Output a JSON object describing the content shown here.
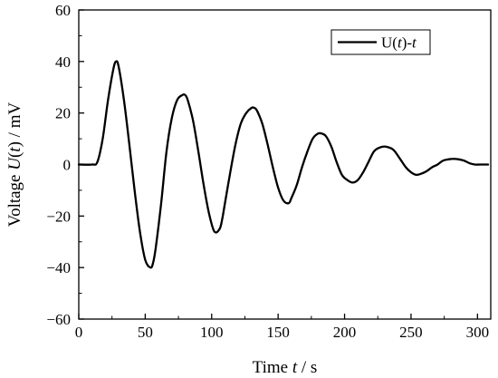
{
  "chart_data": {
    "type": "line",
    "title": "",
    "xlabel": "Time t / s",
    "xlabel_parts": {
      "pre": "Time ",
      "var": "t",
      "post": " / s"
    },
    "ylabel": "Voltage U(t) / mV",
    "ylabel_parts": {
      "pre": "Voltage ",
      "var": "U",
      "mid": "(",
      "arg": "t",
      "post": ") / mV"
    },
    "xlim": [
      0,
      310
    ],
    "ylim": [
      -60,
      60
    ],
    "xticks": [
      0,
      50,
      100,
      150,
      200,
      250,
      300
    ],
    "yticks": [
      -60,
      -40,
      -20,
      0,
      20,
      40,
      60
    ],
    "grid": false,
    "legend_position": "top-right",
    "series": [
      {
        "name": "U(t)-t",
        "name_parts": {
          "pre": "U(",
          "var": "t",
          "post": ")-",
          "var2": "t"
        },
        "color": "#000000",
        "x": [
          0,
          10,
          14,
          18,
          22,
          26,
          28,
          30,
          34,
          38,
          42,
          46,
          50,
          54,
          56,
          58,
          62,
          66,
          70,
          74,
          78,
          80,
          82,
          86,
          90,
          94,
          98,
          102,
          106,
          108,
          110,
          114,
          118,
          122,
          126,
          130,
          132,
          134,
          138,
          142,
          146,
          150,
          154,
          158,
          160,
          164,
          168,
          172,
          176,
          180,
          183,
          186,
          190,
          194,
          198,
          202,
          206,
          210,
          214,
          218,
          222,
          226,
          230,
          234,
          236,
          238,
          242,
          246,
          250,
          254,
          258,
          262,
          266,
          270,
          274,
          278,
          282,
          286,
          290,
          294,
          298,
          302,
          308
        ],
        "y": [
          0,
          0,
          1,
          10,
          25,
          37,
          40,
          38,
          25,
          8,
          -10,
          -26,
          -37,
          -40,
          -38,
          -32,
          -15,
          5,
          18,
          25,
          27,
          27,
          25,
          17,
          5,
          -8,
          -19,
          -26,
          -25,
          -21,
          -15,
          -3,
          8,
          16,
          20,
          22,
          22,
          21,
          16,
          8,
          -1,
          -9,
          -14,
          -15,
          -13,
          -8,
          -1,
          5,
          10,
          12,
          12,
          11,
          7,
          1,
          -4,
          -6,
          -7,
          -6,
          -3,
          1,
          5,
          6.5,
          7,
          6.5,
          6,
          5,
          2,
          -1,
          -3,
          -4,
          -3.5,
          -2.5,
          -1,
          0,
          1.5,
          2,
          2.2,
          2,
          1.5,
          0.5,
          0,
          0,
          0
        ]
      }
    ]
  }
}
